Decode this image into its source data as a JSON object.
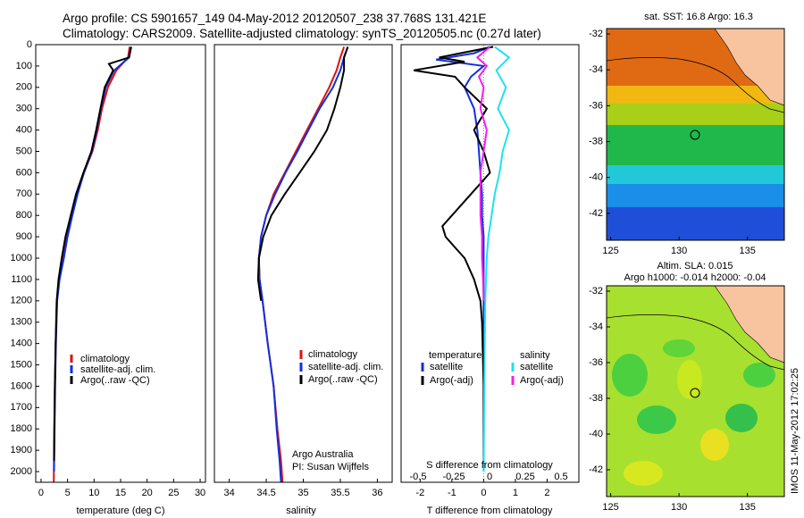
{
  "header": {
    "line1": "Argo profile: CS 5901657_149 04-May-2012 20120507_238 37.768S 131.421E",
    "line2": "Climatology: CARS2009. Satellite-adjusted climatology: synTS_20120505.nc (0.27d later)"
  },
  "colors": {
    "climatology": "#e01010",
    "satellite": "#1030e0",
    "argo": "#000000",
    "salinity_sat": "#20e0f0",
    "salinity_argo": "#f020f0",
    "land": "#f8c4a0"
  },
  "chart_data": [
    {
      "type": "line",
      "id": "temperature",
      "xlabel": "temperature (deg C)",
      "xlim": [
        -1,
        31
      ],
      "ylim": [
        2050,
        0
      ],
      "xticks": [
        "0",
        "5",
        "10",
        "15",
        "20",
        "25",
        "30"
      ],
      "yticks": [
        "0",
        "100",
        "200",
        "300",
        "400",
        "500",
        "600",
        "700",
        "800",
        "900",
        "1000",
        "1100",
        "1200",
        "1300",
        "1400",
        "1500",
        "1600",
        "1700",
        "1800",
        "1900",
        "2000"
      ],
      "legend": [
        "climatology",
        "satellite-adj. clim.",
        "Argo(..raw -QC)"
      ],
      "series": [
        {
          "name": "climatology",
          "color": "#e01010",
          "x": [
            16.7,
            16.4,
            14.2,
            12.6,
            11.5,
            10.7,
            9.7,
            8.1,
            6.7,
            5.7,
            4.8,
            4.1,
            3.4,
            2.95,
            2.75,
            2.6,
            2.5,
            2.45,
            2.42,
            2.4
          ],
          "y": [
            10,
            60,
            120,
            200,
            300,
            400,
            500,
            600,
            700,
            800,
            900,
            1000,
            1100,
            1200,
            1400,
            1600,
            1800,
            1900,
            2000,
            2050
          ]
        },
        {
          "name": "satellite-adj. clim.",
          "color": "#1030e0",
          "x": [
            16.9,
            16.6,
            13.8,
            12.2,
            11.3,
            10.5,
            9.6,
            8.1,
            6.9,
            5.9,
            5.0,
            4.3,
            3.5,
            3.05,
            2.8,
            2.65,
            2.55,
            2.5,
            2.45
          ],
          "y": [
            10,
            60,
            120,
            200,
            300,
            400,
            500,
            600,
            700,
            800,
            900,
            1000,
            1100,
            1200,
            1400,
            1600,
            1800,
            1900,
            2000
          ]
        },
        {
          "name": "Argo(..raw -QC)",
          "color": "#000000",
          "x": [
            17.0,
            16.6,
            12.8,
            13.6,
            12.0,
            11.2,
            10.4,
            9.5,
            8.0,
            6.6,
            5.6,
            4.6,
            3.9,
            3.3,
            2.95,
            2.75,
            2.6,
            2.5,
            2.45
          ],
          "y": [
            10,
            60,
            90,
            120,
            200,
            300,
            400,
            500,
            600,
            700,
            800,
            900,
            1000,
            1100,
            1200,
            1400,
            1600,
            1800,
            1950
          ]
        }
      ]
    },
    {
      "type": "line",
      "id": "salinity",
      "xlabel": "salinity",
      "xlim": [
        33.8,
        36.2
      ],
      "ylim": [
        2050,
        0
      ],
      "xticks": [
        "34",
        "34.5",
        "35",
        "35.5",
        "36"
      ],
      "legend": [
        "climatology",
        "satellite-adj. clim.",
        "Argo(..raw -QC)"
      ],
      "annotation": [
        "Argo Australia",
        "PI: Susan Wijffels"
      ],
      "series": [
        {
          "name": "climatology",
          "color": "#e01010",
          "x": [
            35.55,
            35.5,
            35.45,
            35.35,
            35.2,
            35.05,
            34.9,
            34.75,
            34.6,
            34.5,
            34.43,
            34.4,
            34.41,
            34.45,
            34.52,
            34.6,
            34.65,
            34.7,
            34.72
          ],
          "y": [
            10,
            60,
            120,
            200,
            300,
            400,
            500,
            600,
            700,
            800,
            900,
            1000,
            1100,
            1200,
            1400,
            1600,
            1800,
            1950,
            2050
          ]
        },
        {
          "name": "satellite-adj. clim.",
          "color": "#1030e0",
          "x": [
            35.6,
            35.55,
            35.5,
            35.4,
            35.22,
            35.07,
            34.92,
            34.76,
            34.62,
            34.5,
            34.43,
            34.4,
            34.41,
            34.45,
            34.52,
            34.6,
            34.64,
            34.68,
            34.7
          ],
          "y": [
            10,
            60,
            120,
            200,
            300,
            400,
            500,
            600,
            700,
            800,
            900,
            1000,
            1100,
            1200,
            1400,
            1600,
            1800,
            1950,
            2050
          ]
        },
        {
          "name": "Argo(..raw -QC)",
          "color": "#000000",
          "x": [
            35.6,
            35.55,
            35.55,
            35.5,
            35.42,
            35.32,
            35.15,
            34.95,
            34.75,
            34.57,
            34.46,
            34.4,
            34.39,
            34.43
          ],
          "y": [
            10,
            60,
            120,
            200,
            300,
            400,
            500,
            600,
            700,
            800,
            900,
            1000,
            1100,
            1200
          ]
        }
      ]
    },
    {
      "type": "line",
      "id": "difference",
      "xlabel": "T difference from climatology",
      "title": "S difference from climatology",
      "xlim": [
        -2.6,
        3.0
      ],
      "ylim": [
        2050,
        0
      ],
      "xticks": [
        "-2",
        "-1",
        "0",
        "1",
        "2"
      ],
      "sticks": [
        "-0.5",
        "-0.25",
        "0",
        "0.25",
        "0.5"
      ],
      "legend_left_title": "temperature",
      "legend_right_title": "salinity",
      "legend_left": [
        "satellite",
        "Argo(-adj)"
      ],
      "legend_right": [
        "satellite",
        "Argo(-adj)"
      ],
      "series": [
        {
          "name": "T satellite",
          "color": "#1030e0",
          "x": [
            0.2,
            -0.3,
            -1.5,
            0.0,
            -0.4,
            -0.6,
            -0.3,
            -0.2,
            -0.15,
            -0.1,
            -0.05,
            -0.05,
            0.0,
            0.0,
            0.0,
            0.0,
            0.0
          ],
          "y": [
            10,
            40,
            70,
            100,
            150,
            200,
            300,
            400,
            500,
            600,
            700,
            800,
            900,
            1000,
            1200,
            1600,
            2000
          ]
        },
        {
          "name": "T Argo(-adj)",
          "color": "#000000",
          "x": [
            0.3,
            -1.4,
            -0.6,
            -2.2,
            -0.9,
            -0.6,
            0.1,
            -0.3,
            0.0,
            0.2,
            -0.4,
            -1.0,
            -1.3,
            -1.2,
            -0.9,
            -0.6,
            -0.3,
            -0.1,
            -0.05,
            0.0,
            0.0
          ],
          "y": [
            10,
            60,
            80,
            120,
            150,
            200,
            300,
            400,
            500,
            600,
            700,
            800,
            850,
            900,
            950,
            1000,
            1100,
            1200,
            1300,
            1600,
            1950
          ]
        },
        {
          "name": "S satellite",
          "color": "#20e0f0",
          "x": [
            0.35,
            0.8,
            0.4,
            0.7,
            0.45,
            0.8,
            0.6,
            0.5,
            0.35,
            0.25,
            0.15,
            0.1,
            0.05,
            0.02,
            0.0
          ],
          "y": [
            10,
            60,
            120,
            200,
            300,
            400,
            500,
            600,
            700,
            800,
            900,
            1000,
            1200,
            1600,
            2000
          ]
        },
        {
          "name": "S Argo(-adj)",
          "color": "#f020f0",
          "x": [
            0.2,
            -0.2,
            0.1,
            -0.15,
            0.0,
            -0.1,
            0.1,
            0.0,
            -0.1,
            -0.1,
            -0.05,
            -0.05,
            -0.02,
            0.0
          ],
          "y": [
            10,
            60,
            100,
            150,
            200,
            300,
            400,
            500,
            600,
            800,
            900,
            1000,
            1100,
            1200
          ]
        }
      ]
    },
    {
      "type": "heatmap",
      "id": "sst-map",
      "title": "sat. SST: 16.8 Argo: 16.3",
      "xticks": [
        "125",
        "130",
        "135"
      ],
      "yticks": [
        "-32",
        "-34",
        "-36",
        "-38",
        "-40",
        "-42"
      ],
      "xlim": [
        124.7,
        137.7
      ],
      "ylim": [
        -43.5,
        -31.7
      ],
      "marker": {
        "lon": 131.42,
        "lat": -37.77
      }
    },
    {
      "type": "heatmap",
      "id": "sla-map",
      "title_line1": "Altim. SLA: 0.015",
      "title_line2": "Argo h1000: -0.014 h2000: -0.04",
      "xticks": [
        "125",
        "130",
        "135"
      ],
      "yticks": [
        "-32",
        "-34",
        "-36",
        "-38",
        "-40",
        "-42"
      ],
      "xlim": [
        124.7,
        137.7
      ],
      "ylim": [
        -43.5,
        -31.7
      ],
      "marker": {
        "lon": 131.42,
        "lat": -37.77
      }
    }
  ],
  "footer": {
    "stamp": "IMOS 11-May-2012 17:02:25"
  }
}
